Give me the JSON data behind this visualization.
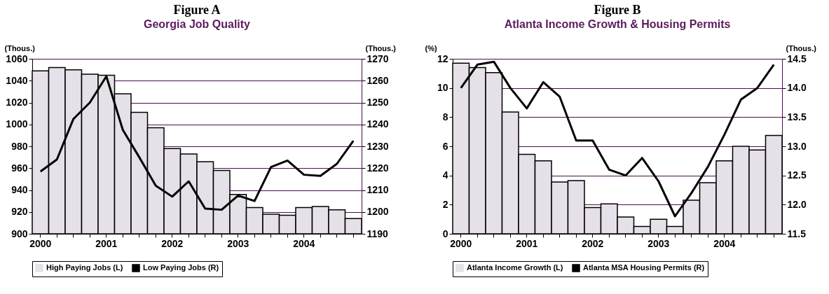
{
  "chart_data": [
    {
      "type": "bar",
      "title": "Figure A",
      "subtitle": "Georgia Job Quality",
      "ylabel": "(Thous.)",
      "y2label": "(Thous.)",
      "categories": [
        "2000",
        null,
        null,
        null,
        "2001",
        null,
        null,
        null,
        "2002",
        null,
        null,
        null,
        "2003",
        null,
        null,
        null,
        "2004",
        null,
        null,
        null
      ],
      "series": [
        {
          "name": "High Paying Jobs (L)",
          "color": "#e6e0e8",
          "values": [
            1049,
            1052,
            1050,
            1046,
            1045,
            1028,
            1011,
            997,
            978,
            973,
            966,
            958,
            936,
            924,
            918,
            917,
            924,
            925,
            922,
            914
          ]
        },
        {
          "name": "Low Paying Jobs (R)",
          "type": "line",
          "axis": "y2",
          "color": "#000000",
          "values": [
            1218.5,
            1224,
            1242.5,
            1250,
            1262,
            1237.5,
            1225,
            1212,
            1207,
            1214,
            1201.5,
            1201,
            1207.5,
            1205,
            1220.5,
            1223.5,
            1217,
            1216.5,
            1222,
            1232.5
          ]
        }
      ],
      "ylim": [
        900,
        1060
      ],
      "yticks": [
        900,
        920,
        940,
        960,
        980,
        1000,
        1020,
        1040,
        1060
      ],
      "y2lim": [
        1190,
        1270
      ],
      "y2ticks": [
        1190,
        1200,
        1210,
        1220,
        1230,
        1240,
        1250,
        1260,
        1270
      ],
      "grid": "y",
      "legend": "bottom"
    },
    {
      "type": "bar",
      "title": "Figure B",
      "subtitle": "Atlanta Income Growth & Housing Permits",
      "ylabel": "(%)",
      "y2label": "(Thous.)",
      "categories": [
        "2000",
        null,
        null,
        null,
        "2001",
        null,
        null,
        null,
        "2002",
        null,
        null,
        null,
        "2003",
        null,
        null,
        null,
        "2004",
        null,
        null,
        null
      ],
      "series": [
        {
          "name": "Atlanta Income Growth (L)",
          "color": "#e6e0e8",
          "values": [
            11.7,
            11.4,
            11.05,
            8.35,
            5.45,
            5.0,
            3.55,
            3.65,
            1.8,
            2.05,
            1.15,
            0.5,
            1.0,
            0.5,
            2.3,
            3.5,
            5.0,
            6.0,
            5.75,
            6.75
          ]
        },
        {
          "name": "Atlanta MSA Housing Permits (R)",
          "type": "line",
          "axis": "y2",
          "color": "#000000",
          "values": [
            14.0,
            14.4,
            14.45,
            14.0,
            13.65,
            14.1,
            13.85,
            13.1,
            13.1,
            12.6,
            12.5,
            12.8,
            12.4,
            11.8,
            12.2,
            12.65,
            13.2,
            13.8,
            14.0,
            14.4
          ]
        }
      ],
      "ylim": [
        0,
        12
      ],
      "yticks": [
        0,
        2,
        4,
        6,
        8,
        10,
        12
      ],
      "y2lim": [
        11.5,
        14.5
      ],
      "y2ticks": [
        {
          "value": 11.5,
          "label": "11.5"
        },
        {
          "value": 12,
          "label": "12.0"
        },
        {
          "value": 12.5,
          "label": "12.5"
        },
        {
          "value": 13,
          "label": "13.0"
        },
        {
          "value": 13.5,
          "label": "13.5"
        },
        {
          "value": 14,
          "label": "14.0"
        },
        {
          "value": 14.5,
          "label": "14.5"
        }
      ],
      "grid": "y",
      "legend": "bottom"
    }
  ]
}
